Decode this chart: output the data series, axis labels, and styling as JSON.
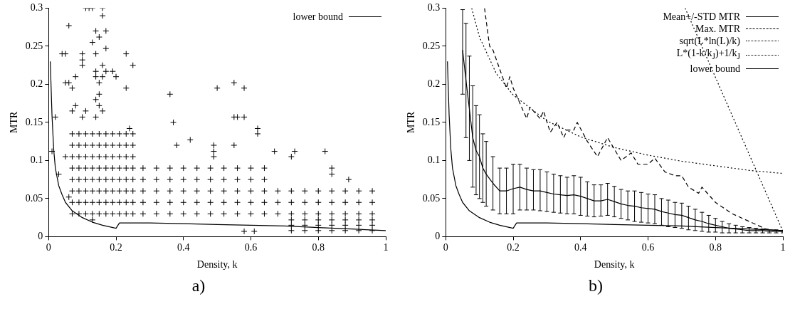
{
  "chart_data": [
    {
      "type": "scatter",
      "xlabel": "Density, k",
      "ylabel": "MTR",
      "annotations": [
        "a)"
      ],
      "xlim": [
        0,
        1
      ],
      "ylim": [
        0,
        0.3
      ],
      "xticks": [
        0,
        0.2,
        0.4,
        0.6,
        0.8,
        1
      ],
      "yticks": [
        0,
        0.05,
        0.1,
        0.15,
        0.2,
        0.25,
        0.3
      ],
      "legend": "top right",
      "series": [
        {
          "color": "#000000",
          "marker": "cross",
          "x": [
            0.11,
            0.12,
            0.13,
            0.16,
            0.16,
            0.06,
            0.14,
            0.17,
            0.15,
            0.13,
            0.17,
            0.04,
            0.05,
            0.1,
            0.14,
            0.23,
            0.1,
            0.1,
            0.16,
            0.25,
            0.14,
            0.17,
            0.19,
            0.08,
            0.14,
            0.16,
            0.2,
            0.05,
            0.06,
            0.15,
            0.07,
            0.23,
            0.15,
            0.14,
            0.08,
            0.15,
            0.07,
            0.11,
            0.16,
            0.02,
            0.1,
            0.14,
            0.24,
            0.36,
            0.37,
            0.38,
            0.42,
            0.49,
            0.49,
            0.49,
            0.5,
            0.55,
            0.58,
            0.55,
            0.56,
            0.58,
            0.55,
            0.62,
            0.62,
            0.67,
            0.72,
            0.73,
            0.82,
            0.84,
            0.84,
            0.89,
            0.01,
            0.05,
            0.03,
            0.06,
            0.13,
            0.58,
            0.61,
            0.07,
            0.07,
            0.07,
            0.07,
            0.07,
            0.07,
            0.07,
            0.07,
            0.09,
            0.09,
            0.09,
            0.09,
            0.09,
            0.09,
            0.09,
            0.09,
            0.11,
            0.11,
            0.11,
            0.11,
            0.11,
            0.11,
            0.11,
            0.11,
            0.13,
            0.13,
            0.13,
            0.13,
            0.13,
            0.13,
            0.13,
            0.13,
            0.15,
            0.15,
            0.15,
            0.15,
            0.15,
            0.15,
            0.15,
            0.15,
            0.17,
            0.17,
            0.17,
            0.17,
            0.17,
            0.17,
            0.17,
            0.17,
            0.19,
            0.19,
            0.19,
            0.19,
            0.19,
            0.19,
            0.19,
            0.19,
            0.21,
            0.21,
            0.21,
            0.21,
            0.21,
            0.21,
            0.21,
            0.21,
            0.23,
            0.23,
            0.23,
            0.23,
            0.23,
            0.23,
            0.23,
            0.23,
            0.25,
            0.25,
            0.25,
            0.25,
            0.25,
            0.25,
            0.25,
            0.25,
            0.28,
            0.28,
            0.28,
            0.32,
            0.32,
            0.32,
            0.36,
            0.36,
            0.36,
            0.4,
            0.4,
            0.4,
            0.44,
            0.44,
            0.44,
            0.48,
            0.48,
            0.48,
            0.52,
            0.52,
            0.52,
            0.56,
            0.56,
            0.56,
            0.6,
            0.6,
            0.6,
            0.64,
            0.64,
            0.64,
            0.68,
            0.68,
            0.68,
            0.72,
            0.72,
            0.72,
            0.76,
            0.76,
            0.76,
            0.8,
            0.8,
            0.8,
            0.84,
            0.84,
            0.84,
            0.88,
            0.88,
            0.88,
            0.92,
            0.92,
            0.92,
            0.96,
            0.96,
            0.96,
            0.28,
            0.28,
            0.32,
            0.32,
            0.36,
            0.36,
            0.4,
            0.4,
            0.44,
            0.44,
            0.48,
            0.48,
            0.52,
            0.52,
            0.56,
            0.56,
            0.6,
            0.6,
            0.64,
            0.64,
            0.72,
            0.72,
            0.72,
            0.76,
            0.76,
            0.76,
            0.8,
            0.8,
            0.8,
            0.84,
            0.84,
            0.84,
            0.88,
            0.88,
            0.88,
            0.92,
            0.92,
            0.92,
            0.96,
            0.96,
            0.96
          ],
          "values": [
            0.3,
            0.3,
            0.3,
            0.3,
            0.29,
            0.277,
            0.27,
            0.27,
            0.262,
            0.255,
            0.247,
            0.24,
            0.24,
            0.24,
            0.24,
            0.24,
            0.232,
            0.225,
            0.225,
            0.225,
            0.217,
            0.217,
            0.217,
            0.21,
            0.21,
            0.21,
            0.21,
            0.202,
            0.202,
            0.202,
            0.195,
            0.195,
            0.187,
            0.18,
            0.172,
            0.172,
            0.165,
            0.165,
            0.165,
            0.157,
            0.157,
            0.157,
            0.142,
            0.187,
            0.15,
            0.12,
            0.127,
            0.12,
            0.112,
            0.105,
            0.195,
            0.202,
            0.195,
            0.157,
            0.157,
            0.157,
            0.12,
            0.142,
            0.135,
            0.112,
            0.105,
            0.112,
            0.112,
            0.09,
            0.082,
            0.075,
            0.112,
            0.105,
            0.082,
            0.052,
            0.022,
            0.007,
            0.007,
            0.03,
            0.045,
            0.06,
            0.075,
            0.09,
            0.105,
            0.12,
            0.135,
            0.03,
            0.045,
            0.06,
            0.075,
            0.09,
            0.105,
            0.12,
            0.135,
            0.03,
            0.045,
            0.06,
            0.075,
            0.09,
            0.105,
            0.12,
            0.135,
            0.03,
            0.045,
            0.06,
            0.075,
            0.09,
            0.105,
            0.12,
            0.135,
            0.03,
            0.045,
            0.06,
            0.075,
            0.09,
            0.105,
            0.12,
            0.135,
            0.03,
            0.045,
            0.06,
            0.075,
            0.09,
            0.105,
            0.12,
            0.135,
            0.03,
            0.045,
            0.06,
            0.075,
            0.09,
            0.105,
            0.12,
            0.135,
            0.03,
            0.045,
            0.06,
            0.075,
            0.09,
            0.105,
            0.12,
            0.135,
            0.03,
            0.045,
            0.06,
            0.075,
            0.09,
            0.105,
            0.12,
            0.135,
            0.03,
            0.045,
            0.06,
            0.075,
            0.09,
            0.105,
            0.12,
            0.135,
            0.03,
            0.045,
            0.06,
            0.03,
            0.045,
            0.06,
            0.03,
            0.045,
            0.06,
            0.03,
            0.045,
            0.06,
            0.03,
            0.045,
            0.06,
            0.03,
            0.045,
            0.06,
            0.03,
            0.045,
            0.06,
            0.03,
            0.045,
            0.06,
            0.03,
            0.045,
            0.06,
            0.03,
            0.045,
            0.06,
            0.03,
            0.045,
            0.06,
            0.03,
            0.045,
            0.06,
            0.03,
            0.045,
            0.06,
            0.03,
            0.045,
            0.06,
            0.03,
            0.045,
            0.06,
            0.03,
            0.045,
            0.06,
            0.03,
            0.045,
            0.06,
            0.03,
            0.045,
            0.06,
            0.075,
            0.09,
            0.075,
            0.09,
            0.075,
            0.09,
            0.075,
            0.09,
            0.075,
            0.09,
            0.075,
            0.09,
            0.075,
            0.09,
            0.075,
            0.09,
            0.075,
            0.09,
            0.075,
            0.09,
            0.008,
            0.015,
            0.022,
            0.008,
            0.015,
            0.022,
            0.008,
            0.015,
            0.022,
            0.008,
            0.015,
            0.022,
            0.008,
            0.015,
            0.022,
            0.008,
            0.015,
            0.022,
            0.008,
            0.015,
            0.022
          ]
        },
        {
          "type": "line",
          "name": "lower bound",
          "color": "#000000",
          "line_style": "solid",
          "marker": "none",
          "x": [
            0.005,
            0.01,
            0.015,
            0.02,
            0.03,
            0.04,
            0.05,
            0.07,
            0.1,
            0.13,
            0.16,
            0.2,
            0.21,
            0.3,
            0.4,
            0.5,
            0.6,
            0.7,
            0.8,
            0.9,
            1
          ],
          "values": [
            0.23,
            0.16,
            0.115,
            0.09,
            0.067,
            0.055,
            0.045,
            0.034,
            0.025,
            0.019,
            0.015,
            0.011,
            0.018,
            0.018,
            0.017,
            0.016,
            0.015,
            0.014,
            0.012,
            0.01,
            0.008
          ]
        }
      ]
    },
    {
      "type": "line",
      "xlabel": "Density, k",
      "ylabel": "MTR",
      "annotations": [
        "b)"
      ],
      "xlim": [
        0,
        1
      ],
      "ylim": [
        0,
        0.3
      ],
      "xticks": [
        0,
        0.2,
        0.4,
        0.6,
        0.8,
        1
      ],
      "yticks": [
        0,
        0.05,
        0.1,
        0.15,
        0.2,
        0.25,
        0.3
      ],
      "legend": "top right",
      "series": [
        {
          "name": "Mean+/-STD MTR",
          "color": "#000000",
          "line_style": "solid",
          "x": [
            0.05,
            0.06,
            0.07,
            0.08,
            0.09,
            0.1,
            0.11,
            0.12,
            0.14,
            0.16,
            0.18,
            0.2,
            0.22,
            0.24,
            0.26,
            0.28,
            0.3,
            0.32,
            0.34,
            0.36,
            0.38,
            0.4,
            0.42,
            0.44,
            0.46,
            0.48,
            0.5,
            0.52,
            0.54,
            0.56,
            0.58,
            0.6,
            0.62,
            0.64,
            0.66,
            0.68,
            0.7,
            0.72,
            0.74,
            0.76,
            0.78,
            0.8,
            0.82,
            0.84,
            0.86,
            0.88,
            0.9,
            0.92,
            0.94,
            0.96,
            0.98,
            1
          ],
          "values": [
            0.245,
            0.205,
            0.168,
            0.13,
            0.113,
            0.105,
            0.09,
            0.082,
            0.07,
            0.06,
            0.06,
            0.063,
            0.065,
            0.062,
            0.06,
            0.06,
            0.058,
            0.056,
            0.055,
            0.054,
            0.055,
            0.053,
            0.05,
            0.047,
            0.047,
            0.049,
            0.046,
            0.043,
            0.041,
            0.04,
            0.038,
            0.037,
            0.036,
            0.033,
            0.031,
            0.029,
            0.028,
            0.025,
            0.022,
            0.02,
            0.017,
            0.015,
            0.013,
            0.011,
            0.01,
            0.009,
            0.008,
            0.008,
            0.008,
            0.007,
            0.007,
            0.007
          ],
          "errors": [
            [
              0.187,
              0.298
            ],
            [
              0.13,
              0.28
            ],
            [
              0.1,
              0.237
            ],
            [
              0.065,
              0.198
            ],
            [
              0.055,
              0.172
            ],
            [
              0.05,
              0.16
            ],
            [
              0.045,
              0.135
            ],
            [
              0.04,
              0.125
            ],
            [
              0.035,
              0.105
            ],
            [
              0.03,
              0.09
            ],
            [
              0.03,
              0.09
            ],
            [
              0.03,
              0.095
            ],
            [
              0.035,
              0.095
            ],
            [
              0.035,
              0.09
            ],
            [
              0.035,
              0.088
            ],
            [
              0.034,
              0.088
            ],
            [
              0.033,
              0.085
            ],
            [
              0.032,
              0.082
            ],
            [
              0.031,
              0.08
            ],
            [
              0.03,
              0.078
            ],
            [
              0.03,
              0.08
            ],
            [
              0.028,
              0.078
            ],
            [
              0.027,
              0.072
            ],
            [
              0.026,
              0.068
            ],
            [
              0.027,
              0.068
            ],
            [
              0.028,
              0.07
            ],
            [
              0.026,
              0.066
            ],
            [
              0.024,
              0.062
            ],
            [
              0.022,
              0.06
            ],
            [
              0.02,
              0.06
            ],
            [
              0.019,
              0.058
            ],
            [
              0.018,
              0.056
            ],
            [
              0.017,
              0.055
            ],
            [
              0.015,
              0.05
            ],
            [
              0.013,
              0.048
            ],
            [
              0.012,
              0.045
            ],
            [
              0.011,
              0.044
            ],
            [
              0.009,
              0.04
            ],
            [
              0.008,
              0.036
            ],
            [
              0.007,
              0.032
            ],
            [
              0.006,
              0.028
            ],
            [
              0.006,
              0.024
            ],
            [
              0.005,
              0.02
            ],
            [
              0.005,
              0.017
            ],
            [
              0.005,
              0.015
            ],
            [
              0.005,
              0.013
            ],
            [
              0.005,
              0.012
            ],
            [
              0.005,
              0.011
            ],
            [
              0.005,
              0.01
            ],
            [
              0.005,
              0.009
            ],
            [
              0.005,
              0.009
            ],
            [
              0.005,
              0.008
            ]
          ]
        },
        {
          "name": "Max. MTR",
          "color": "#000000",
          "line_style": "dashed",
          "x": [
            0.115,
            0.13,
            0.14,
            0.16,
            0.18,
            0.19,
            0.2,
            0.22,
            0.24,
            0.25,
            0.28,
            0.29,
            0.31,
            0.33,
            0.35,
            0.36,
            0.38,
            0.39,
            0.42,
            0.45,
            0.48,
            0.5,
            0.52,
            0.55,
            0.57,
            0.6,
            0.62,
            0.65,
            0.68,
            0.7,
            0.72,
            0.75,
            0.76,
            0.8,
            0.85,
            0.9,
            0.95,
            1
          ],
          "values": [
            0.3,
            0.25,
            0.245,
            0.22,
            0.195,
            0.21,
            0.195,
            0.175,
            0.155,
            0.17,
            0.155,
            0.165,
            0.137,
            0.15,
            0.13,
            0.14,
            0.14,
            0.15,
            0.125,
            0.105,
            0.13,
            0.115,
            0.1,
            0.11,
            0.095,
            0.095,
            0.103,
            0.085,
            0.08,
            0.08,
            0.065,
            0.057,
            0.065,
            0.045,
            0.03,
            0.02,
            0.01,
            0.007
          ]
        },
        {
          "name": "sqrt(L*ln(L)/k)",
          "color": "#000000",
          "line_style": "dotted",
          "x": [
            0.077,
            0.1,
            0.15,
            0.2,
            0.3,
            0.4,
            0.5,
            0.6,
            0.7,
            0.8,
            0.9,
            1
          ],
          "values": [
            0.3,
            0.262,
            0.214,
            0.186,
            0.152,
            0.131,
            0.117,
            0.107,
            0.099,
            0.093,
            0.087,
            0.083
          ]
        },
        {
          "name": "L*(1-k/k$_{J}$)+1/k$_{J}$",
          "color": "#000000",
          "line_style": "dotted",
          "x": [
            0.71,
            1
          ],
          "values": [
            0.3,
            0.007
          ]
        },
        {
          "name": "lower bound",
          "color": "#000000",
          "line_style": "solid",
          "x": [
            0.005,
            0.01,
            0.015,
            0.02,
            0.03,
            0.04,
            0.05,
            0.07,
            0.1,
            0.13,
            0.16,
            0.2,
            0.21,
            0.3,
            0.4,
            0.5,
            0.6,
            0.7,
            0.8,
            0.9,
            1
          ],
          "values": [
            0.23,
            0.16,
            0.115,
            0.09,
            0.067,
            0.055,
            0.045,
            0.034,
            0.025,
            0.019,
            0.015,
            0.011,
            0.018,
            0.018,
            0.017,
            0.016,
            0.015,
            0.014,
            0.012,
            0.01,
            0.008
          ]
        }
      ]
    }
  ]
}
